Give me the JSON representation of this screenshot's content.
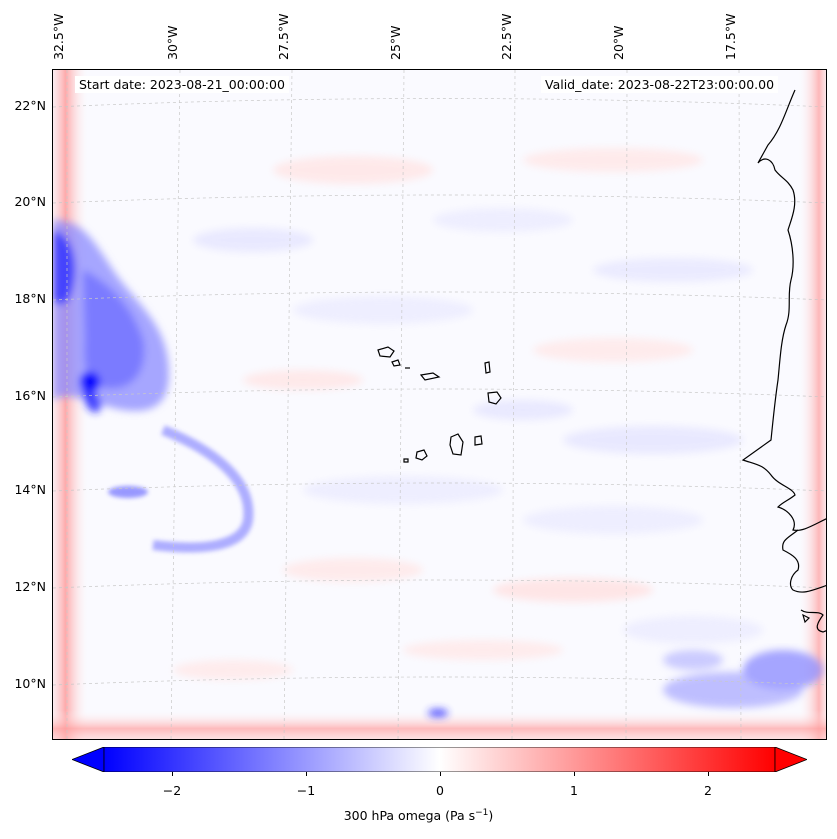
{
  "start_date": "Start date: 2023-08-21_00:00:00",
  "valid_date": "Valid_date: 2023-08-22T23:00:00.00",
  "lon_labels": [
    "32.5°W",
    "30°W",
    "27.5°W",
    "25°W",
    "22.5°W",
    "20°W",
    "17.5°W"
  ],
  "lat_labels": [
    "22°N",
    "20°N",
    "18°N",
    "16°N",
    "14°N",
    "12°N",
    "10°N"
  ],
  "colorbar": {
    "ticks": [
      "−2",
      "−1",
      "0",
      "1",
      "2"
    ],
    "label_main": "300 hPa omega (Pa s",
    "label_sup": "−1",
    "label_end": ")",
    "min_color": "#0000ff",
    "mid_color": "#ffffff",
    "max_color": "#ff0000"
  }
}
